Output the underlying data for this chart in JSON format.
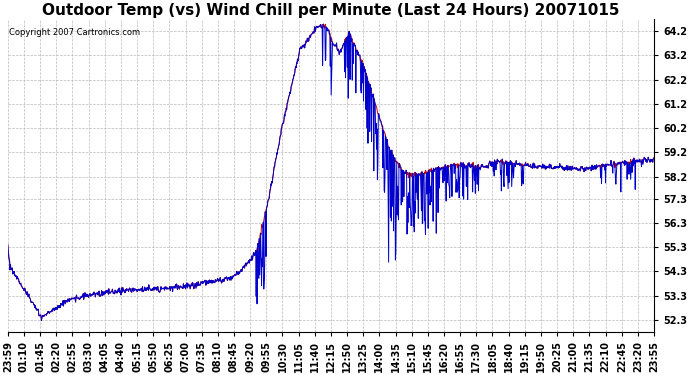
{
  "title": "Outdoor Temp (vs) Wind Chill per Minute (Last 24 Hours) 20071015",
  "copyright": "Copyright 2007 Cartronics.com",
  "yticks": [
    52.3,
    53.3,
    54.3,
    55.3,
    56.3,
    57.3,
    58.2,
    59.2,
    60.2,
    61.2,
    62.2,
    63.2,
    64.2
  ],
  "ylim": [
    51.8,
    64.7
  ],
  "xtick_labels": [
    "23:59",
    "01:10",
    "01:45",
    "02:20",
    "02:55",
    "03:30",
    "04:05",
    "04:40",
    "05:15",
    "05:50",
    "06:25",
    "07:00",
    "07:35",
    "08:10",
    "08:45",
    "09:20",
    "09:55",
    "10:30",
    "11:05",
    "11:40",
    "12:15",
    "12:50",
    "13:25",
    "14:00",
    "14:35",
    "15:10",
    "15:45",
    "16:20",
    "16:55",
    "17:30",
    "18:05",
    "18:40",
    "19:15",
    "19:50",
    "20:25",
    "21:00",
    "21:35",
    "22:10",
    "22:45",
    "23:20",
    "23:55"
  ],
  "background_color": "#ffffff",
  "grid_color": "#bbbbbb",
  "line_color_red": "#cc0000",
  "line_color_blue": "#0000cc",
  "title_fontsize": 11,
  "tick_fontsize": 7
}
